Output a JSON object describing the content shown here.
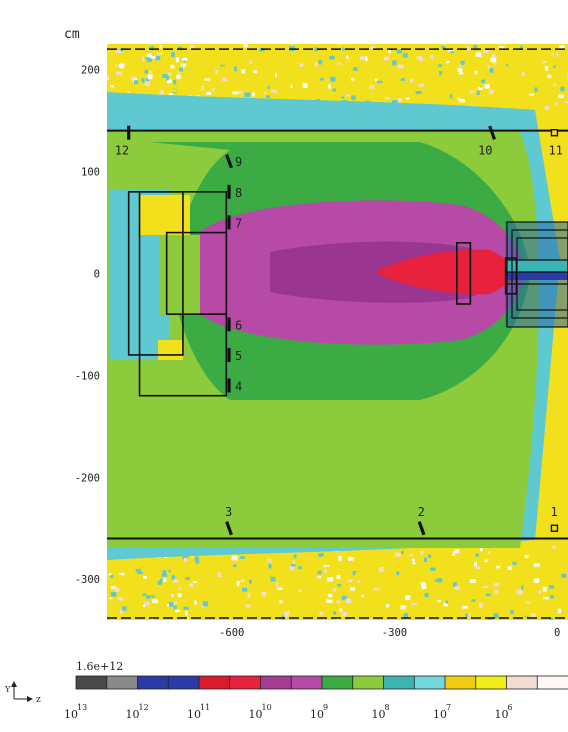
{
  "chart_data": {
    "type": "heatmap",
    "title": "",
    "unit_label": "cm",
    "xlim": [
      -830,
      20
    ],
    "ylim": [
      -340,
      225
    ],
    "x_ticks": [
      {
        "value": -600,
        "label": "-600"
      },
      {
        "value": -300,
        "label": "-300"
      },
      {
        "value": 0,
        "label": "0"
      }
    ],
    "y_ticks": [
      {
        "value": 200,
        "label": "200"
      },
      {
        "value": 100,
        "label": "100"
      },
      {
        "value": 0,
        "label": "0"
      },
      {
        "value": -100,
        "label": "-100"
      },
      {
        "value": -200,
        "label": "-200"
      },
      {
        "value": -300,
        "label": "-300"
      }
    ],
    "grid": false,
    "colorbar": {
      "max_label": "1.6e+12",
      "scale": "log",
      "colors": [
        "#4a4a4a",
        "#8a8a8a",
        "#2c3aa8",
        "#2c3aa8",
        "#d81c2c",
        "#e8213d",
        "#a43c94",
        "#b64aa6",
        "#3cab44",
        "#8ccc3c",
        "#3cb4b4",
        "#72d8dc",
        "#f2cc10",
        "#f2ee1c",
        "#f3dcd2",
        "#fdf7f5"
      ],
      "tick_labels": [
        {
          "base": "10",
          "exp": "13"
        },
        {
          "base": "10",
          "exp": "12"
        },
        {
          "base": "10",
          "exp": "11"
        },
        {
          "base": "10",
          "exp": "10"
        },
        {
          "base": "10",
          "exp": "9"
        },
        {
          "base": "10",
          "exp": "8"
        },
        {
          "base": "10",
          "exp": "7"
        },
        {
          "base": "10",
          "exp": "6"
        }
      ]
    },
    "axis_glyph": {
      "y": "Y",
      "z": "z"
    },
    "detectors": [
      {
        "label": "1",
        "x": -5,
        "y": -250
      },
      {
        "label": "2",
        "x": -250,
        "y": -250
      },
      {
        "label": "3",
        "x": -605,
        "y": -250
      },
      {
        "label": "4",
        "x": -605,
        "y": -110
      },
      {
        "label": "5",
        "x": -605,
        "y": -80
      },
      {
        "label": "6",
        "x": -605,
        "y": -50
      },
      {
        "label": "7",
        "x": -605,
        "y": 50
      },
      {
        "label": "8",
        "x": -605,
        "y": 80
      },
      {
        "label": "9",
        "x": -605,
        "y": 110
      },
      {
        "label": "10",
        "x": -120,
        "y": 138
      },
      {
        "label": "11",
        "x": -5,
        "y": 138
      },
      {
        "label": "12",
        "x": -790,
        "y": 138
      }
    ],
    "hlines_solid": [
      140,
      -260
    ],
    "hlines_dashed": [
      220,
      -338
    ],
    "structures": [
      {
        "x0": -790,
        "x1": -690,
        "y0": -80,
        "y1": 80
      },
      {
        "x0": -770,
        "x1": -610,
        "y0": -120,
        "y1": 80
      },
      {
        "x0": -720,
        "x1": -610,
        "y0": -40,
        "y1": 40
      },
      {
        "x0": -185,
        "x1": -160,
        "y0": -30,
        "y1": 30
      },
      {
        "x0": -95,
        "x1": -75,
        "y0": -20,
        "y1": 15
      }
    ],
    "colors": {
      "far": "#f2e01c",
      "cyan": "#5ec9d0",
      "light_green": "#8ccc3c",
      "green": "#3cab44",
      "magenta": "#b64aa6",
      "dark_magenta": "#9a3590",
      "red": "#e8213d",
      "pink_speckle": "#f3dcd2"
    }
  }
}
